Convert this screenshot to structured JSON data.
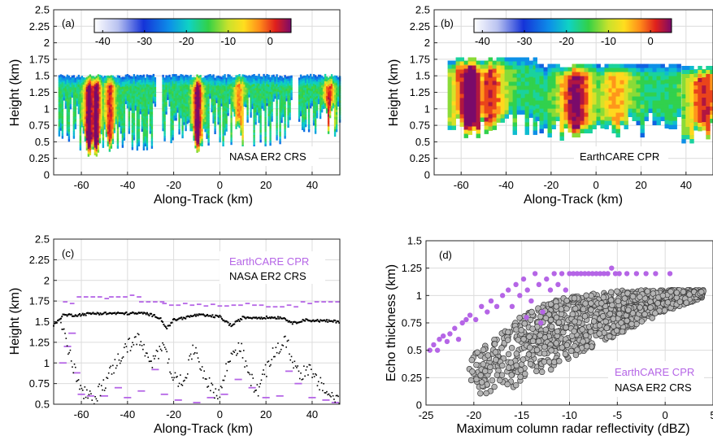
{
  "chart_data": [
    {
      "type": "heatmap",
      "panel_label": "(a)",
      "xlabel": "Along-Track (km)",
      "ylabel": "Height (km)",
      "xlim": [
        -72,
        52
      ],
      "ylim": [
        0,
        2.5
      ],
      "xticks": [
        -60,
        -40,
        -20,
        0,
        20,
        40
      ],
      "yticks": [
        0,
        0.25,
        0.5,
        0.75,
        1,
        1.25,
        1.5,
        1.75,
        2,
        2.25,
        2.5
      ],
      "ytick_labels": [
        "0",
        "0.25",
        "0.5",
        "0.75",
        "1",
        "1.25",
        "1.5",
        "1.75",
        "2",
        "2.25",
        "2.5"
      ],
      "colorbar": {
        "range": [
          -42,
          5
        ],
        "ticks": [
          -40,
          -30,
          -20,
          -10,
          0
        ]
      },
      "annotation": "NASA ER2 CRS",
      "grid": true,
      "cloud_segments": [
        {
          "x": [
            -70,
            -28
          ],
          "top": 1.5,
          "base": [
            0.35,
            1.2
          ]
        },
        {
          "x": [
            -25,
            31
          ],
          "top": 1.5,
          "base": [
            0.4,
            1.2
          ]
        },
        {
          "x": [
            34,
            52
          ],
          "top": 1.5,
          "base": [
            0.6,
            1.1
          ]
        }
      ],
      "cores": [
        {
          "x": -57,
          "base": 0.3,
          "value": -2
        },
        {
          "x": -54,
          "base": 0.3,
          "value": -3
        },
        {
          "x": -48,
          "base": 0.4,
          "value": -8
        },
        {
          "x": -10,
          "base": 0.35,
          "value": -3
        },
        {
          "x": 8,
          "base": 0.75,
          "value": -12
        },
        {
          "x": 47,
          "base": 0.9,
          "value": -8
        }
      ]
    },
    {
      "type": "heatmap",
      "panel_label": "(b)",
      "xlabel": "Along-Track (km)",
      "ylabel": "Height (km)",
      "xlim": [
        -72,
        52
      ],
      "ylim": [
        0,
        2.5
      ],
      "xticks": [
        -60,
        -40,
        -20,
        0,
        20,
        40
      ],
      "yticks": [
        0,
        0.25,
        0.5,
        0.75,
        1,
        1.25,
        1.5,
        1.75,
        2,
        2.25,
        2.5
      ],
      "ytick_labels": [
        "0",
        "0.25",
        "0.5",
        "0.75",
        "1",
        "1.25",
        "1.5",
        "1.75",
        "2",
        "2.25",
        "2.5"
      ],
      "colorbar": {
        "range": [
          -42,
          5
        ],
        "ticks": [
          -40,
          -30,
          -20,
          -10,
          0
        ]
      },
      "annotation": "EarthCARE CPR",
      "grid": true,
      "cloud_segments": [
        {
          "x": [
            -66,
            -28
          ],
          "top": 1.78,
          "base": [
            0.6,
            1.0
          ]
        },
        {
          "x": [
            -27,
            7
          ],
          "top": 1.68,
          "base": [
            0.55,
            0.9
          ]
        },
        {
          "x": [
            7,
            36
          ],
          "top": 1.68,
          "base": [
            0.6,
            0.95
          ]
        },
        {
          "x": [
            38,
            52
          ],
          "top": 1.65,
          "base": [
            0.5,
            0.9
          ]
        }
      ],
      "cores": [
        {
          "x": -57,
          "base": 0.65,
          "value": -2
        },
        {
          "x": -48,
          "base": 0.7,
          "value": -9
        },
        {
          "x": -10,
          "base": 0.6,
          "value": -4
        },
        {
          "x": 8,
          "base": 0.8,
          "value": -14
        },
        {
          "x": 47,
          "base": 0.7,
          "value": -8
        }
      ]
    },
    {
      "type": "scatter",
      "panel_label": "(c)",
      "xlabel": "Along-Track (km)",
      "ylabel": "Height (km)",
      "xlim": [
        -72,
        52
      ],
      "ylim": [
        0.5,
        2.5
      ],
      "xticks": [
        -60,
        -40,
        -20,
        0,
        20,
        40
      ],
      "yticks": [
        0.5,
        0.75,
        1,
        1.25,
        1.5,
        1.75,
        2,
        2.25,
        2.5
      ],
      "ytick_labels": [
        "0.5",
        "0.75",
        "1",
        "1.25",
        "1.5",
        "1.75",
        "2",
        "2.25",
        "2.5"
      ],
      "grid": true,
      "legend": "top",
      "series": [
        {
          "name": "EarthCARE CPR",
          "color": "#b565e6",
          "top": [
            {
              "x": [
                -68,
                -62
              ],
              "y": 1.72
            },
            {
              "x": [
                -62,
                -48
              ],
              "y": 1.78
            },
            {
              "x": [
                -48,
                -35
              ],
              "y": 1.8
            },
            {
              "x": [
                -35,
                -25
              ],
              "y": 1.74
            },
            {
              "x": [
                -25,
                -10
              ],
              "y": 1.7
            },
            {
              "x": [
                -10,
                5
              ],
              "y": 1.69
            },
            {
              "x": [
                5,
                20
              ],
              "y": 1.7
            },
            {
              "x": [
                20,
                35
              ],
              "y": 1.68
            },
            {
              "x": [
                35,
                52
              ],
              "y": 1.72
            }
          ],
          "base": [
            {
              "x": -68,
              "y": 1.0
            },
            {
              "x": -66,
              "y": 1.2
            },
            {
              "x": -64,
              "y": 1.36
            },
            {
              "x": -62,
              "y": 0.88
            },
            {
              "x": -60,
              "y": 0.62
            },
            {
              "x": -56,
              "y": 0.6
            },
            {
              "x": -50,
              "y": 0.6
            },
            {
              "x": -44,
              "y": 0.7
            },
            {
              "x": -40,
              "y": 0.58
            },
            {
              "x": -34,
              "y": 0.66
            },
            {
              "x": -28,
              "y": 0.92
            },
            {
              "x": -24,
              "y": 0.62
            },
            {
              "x": -18,
              "y": 0.55
            },
            {
              "x": -10,
              "y": 0.52
            },
            {
              "x": -4,
              "y": 0.58
            },
            {
              "x": 2,
              "y": 0.62
            },
            {
              "x": 8,
              "y": 0.8
            },
            {
              "x": 14,
              "y": 0.7
            },
            {
              "x": 20,
              "y": 0.58
            },
            {
              "x": 26,
              "y": 0.6
            },
            {
              "x": 30,
              "y": 0.9
            },
            {
              "x": 34,
              "y": 0.75
            },
            {
              "x": 40,
              "y": 0.58
            },
            {
              "x": 46,
              "y": 0.55
            },
            {
              "x": 50,
              "y": 0.52
            }
          ]
        },
        {
          "name": "NASA ER2 CRS",
          "color": "#000000",
          "top_profile": [
            {
              "x": -72,
              "y": 1.45
            },
            {
              "x": -68,
              "y": 1.58
            },
            {
              "x": -62,
              "y": 1.58
            },
            {
              "x": -55,
              "y": 1.6
            },
            {
              "x": -40,
              "y": 1.6
            },
            {
              "x": -32,
              "y": 1.6
            },
            {
              "x": -26,
              "y": 1.55
            },
            {
              "x": -23,
              "y": 1.42
            },
            {
              "x": -20,
              "y": 1.52
            },
            {
              "x": -10,
              "y": 1.58
            },
            {
              "x": 0,
              "y": 1.56
            },
            {
              "x": 5,
              "y": 1.45
            },
            {
              "x": 10,
              "y": 1.55
            },
            {
              "x": 20,
              "y": 1.55
            },
            {
              "x": 27,
              "y": 1.55
            },
            {
              "x": 32,
              "y": 1.48
            },
            {
              "x": 36,
              "y": 1.52
            },
            {
              "x": 52,
              "y": 1.5
            }
          ],
          "base_profile": [
            {
              "x": -69,
              "y": 1.5
            },
            {
              "x": -66,
              "y": 1.2
            },
            {
              "x": -63,
              "y": 0.9
            },
            {
              "x": -60,
              "y": 0.65
            },
            {
              "x": -55,
              "y": 0.55
            },
            {
              "x": -50,
              "y": 0.75
            },
            {
              "x": -45,
              "y": 1.0
            },
            {
              "x": -40,
              "y": 1.2
            },
            {
              "x": -36,
              "y": 1.3
            },
            {
              "x": -33,
              "y": 1.18
            },
            {
              "x": -30,
              "y": 0.95
            },
            {
              "x": -27,
              "y": 1.1
            },
            {
              "x": -24,
              "y": 1.3
            },
            {
              "x": -22,
              "y": 0.95
            },
            {
              "x": -18,
              "y": 0.75
            },
            {
              "x": -14,
              "y": 0.9
            },
            {
              "x": -11,
              "y": 1.2
            },
            {
              "x": -8,
              "y": 0.95
            },
            {
              "x": -4,
              "y": 0.7
            },
            {
              "x": 0,
              "y": 0.62
            },
            {
              "x": 3,
              "y": 0.95
            },
            {
              "x": 6,
              "y": 1.15
            },
            {
              "x": 9,
              "y": 1.2
            },
            {
              "x": 12,
              "y": 0.9
            },
            {
              "x": 16,
              "y": 0.65
            },
            {
              "x": 20,
              "y": 0.9
            },
            {
              "x": 23,
              "y": 1.1
            },
            {
              "x": 26,
              "y": 1.2
            },
            {
              "x": 29,
              "y": 1.25
            },
            {
              "x": 32,
              "y": 1.0
            },
            {
              "x": 35,
              "y": 0.85
            },
            {
              "x": 38,
              "y": 0.95
            },
            {
              "x": 41,
              "y": 0.8
            },
            {
              "x": 45,
              "y": 0.7
            },
            {
              "x": 48,
              "y": 0.6
            },
            {
              "x": 52,
              "y": 0.55
            }
          ]
        }
      ]
    },
    {
      "type": "scatter",
      "panel_label": "(d)",
      "xlabel": "Maximum column radar reflectivity (dBZ)",
      "ylabel": "Echo thickness (km)",
      "xlim": [
        -25,
        5
      ],
      "ylim": [
        0,
        1.5
      ],
      "xticks": [
        -25,
        -20,
        -15,
        -10,
        -5,
        0,
        5
      ],
      "xtick_labels": [
        "-25",
        "-20",
        "-15",
        "-10",
        "-5",
        "0",
        "5"
      ],
      "yticks": [
        0,
        0.25,
        0.5,
        0.75,
        1,
        1.25,
        1.5
      ],
      "ytick_labels": [
        "0",
        "0.25",
        "0.5",
        "0.75",
        "1",
        "1.25",
        "1.5"
      ],
      "grid": true,
      "legend": "bottom-right",
      "series": [
        {
          "name": "EarthCARE CPR",
          "color": "#b565e6",
          "points": [
            [
              -24.6,
              0.5
            ],
            [
              -24.2,
              0.55
            ],
            [
              -23.8,
              0.5
            ],
            [
              -23.6,
              0.6
            ],
            [
              -23.2,
              0.63
            ],
            [
              -22.8,
              0.58
            ],
            [
              -22.5,
              0.65
            ],
            [
              -22.0,
              0.7
            ],
            [
              -21.6,
              0.6
            ],
            [
              -21.2,
              0.75
            ],
            [
              -20.8,
              0.78
            ],
            [
              -20.4,
              0.82
            ],
            [
              -19.8,
              0.78
            ],
            [
              -19.2,
              0.9
            ],
            [
              -18.6,
              0.85
            ],
            [
              -18.2,
              0.95
            ],
            [
              -17.6,
              0.9
            ],
            [
              -17.0,
              1.0
            ],
            [
              -16.4,
              1.05
            ],
            [
              -16.0,
              0.9
            ],
            [
              -15.6,
              1.1
            ],
            [
              -15.2,
              1.0
            ],
            [
              -14.8,
              1.15
            ],
            [
              -14.4,
              1.05
            ],
            [
              -14.0,
              0.95
            ],
            [
              -13.6,
              1.2
            ],
            [
              -13.2,
              1.1
            ],
            [
              -12.8,
              0.85
            ],
            [
              -12.4,
              1.15
            ],
            [
              -12.0,
              1.05
            ],
            [
              -11.6,
              1.2
            ],
            [
              -11.2,
              1.1
            ],
            [
              -10.8,
              1.2
            ],
            [
              -10.4,
              1.05
            ],
            [
              -10.0,
              1.2
            ],
            [
              -9.6,
              1.2
            ],
            [
              -9.2,
              1.2
            ],
            [
              -8.8,
              1.2
            ],
            [
              -8.4,
              1.2
            ],
            [
              -8.0,
              1.2
            ],
            [
              -7.6,
              1.2
            ],
            [
              -7.2,
              1.2
            ],
            [
              -6.8,
              1.2
            ],
            [
              -6.4,
              1.2
            ],
            [
              -6.0,
              1.2
            ],
            [
              -5.6,
              1.25
            ],
            [
              -5.2,
              1.2
            ],
            [
              -4.8,
              1.2
            ],
            [
              -4.0,
              1.2
            ],
            [
              -3.0,
              1.2
            ],
            [
              -2.0,
              1.2
            ],
            [
              -1.0,
              1.2
            ],
            [
              0.5,
              1.2
            ],
            [
              -13.0,
              0.75
            ],
            [
              -14.5,
              0.8
            ]
          ]
        },
        {
          "name": "NASA ER2 CRS",
          "color": "#b4b4b4",
          "cloud": {
            "count": 1100,
            "x_range": [
              -20.5,
              4
            ],
            "lower": [
              [
                -20.5,
                0.08
              ],
              [
                -18,
                0.1
              ],
              [
                -15,
                0.18
              ],
              [
                -12,
                0.3
              ],
              [
                -8,
                0.5
              ],
              [
                -4,
                0.68
              ],
              [
                0,
                0.85
              ],
              [
                4,
                0.98
              ]
            ],
            "upper": [
              [
                -20.5,
                0.45
              ],
              [
                -18,
                0.6
              ],
              [
                -15,
                0.82
              ],
              [
                -12,
                0.95
              ],
              [
                -8,
                1.02
              ],
              [
                -4,
                1.05
              ],
              [
                0,
                1.05
              ],
              [
                4,
                1.05
              ]
            ]
          }
        }
      ]
    }
  ]
}
